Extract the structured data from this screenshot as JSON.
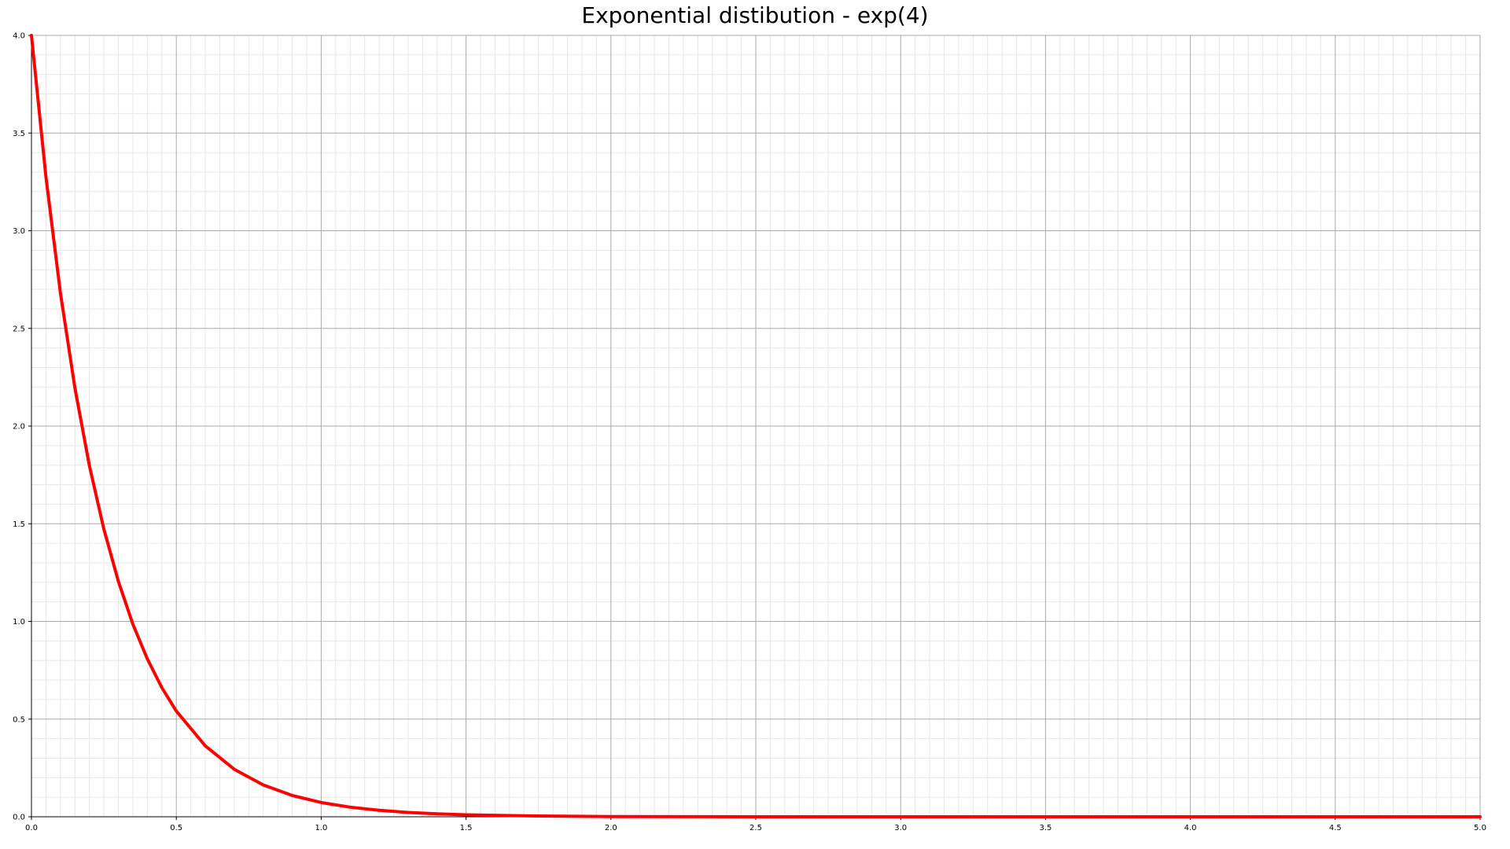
{
  "chart_data": {
    "type": "line",
    "title": "Exponential distibution - exp(4)",
    "xlabel": "",
    "ylabel": "",
    "xlim": [
      0,
      5
    ],
    "ylim": [
      0,
      4
    ],
    "x_ticks": [
      "0.0",
      "0.5",
      "1.0",
      "1.5",
      "2.0",
      "2.5",
      "3.0",
      "3.5",
      "4.0",
      "4.5",
      "5.0"
    ],
    "y_ticks": [
      "0.0",
      "0.5",
      "1.0",
      "1.5",
      "2.0",
      "2.5",
      "3.0",
      "3.5",
      "4.0"
    ],
    "grid": true,
    "legend": "none",
    "series": [
      {
        "color": "#ff0000",
        "x": [
          0,
          0.05,
          0.1,
          0.15,
          0.2,
          0.25,
          0.3,
          0.35,
          0.4,
          0.45,
          0.5,
          0.6,
          0.7,
          0.8,
          0.9,
          1.0,
          1.1,
          1.2,
          1.3,
          1.4,
          1.5,
          1.75,
          2.0,
          2.5,
          3.0,
          3.5,
          4.0,
          4.5,
          5.0
        ],
        "y": [
          4.0,
          3.275,
          2.681,
          2.195,
          1.797,
          1.472,
          1.205,
          0.986,
          0.808,
          0.661,
          0.541,
          0.363,
          0.243,
          0.163,
          0.109,
          0.073,
          0.049,
          0.033,
          0.022,
          0.015,
          0.01,
          0.004,
          0.001,
          0.0002,
          0.0,
          0.0,
          0.0,
          0.0,
          0.0
        ]
      }
    ]
  }
}
